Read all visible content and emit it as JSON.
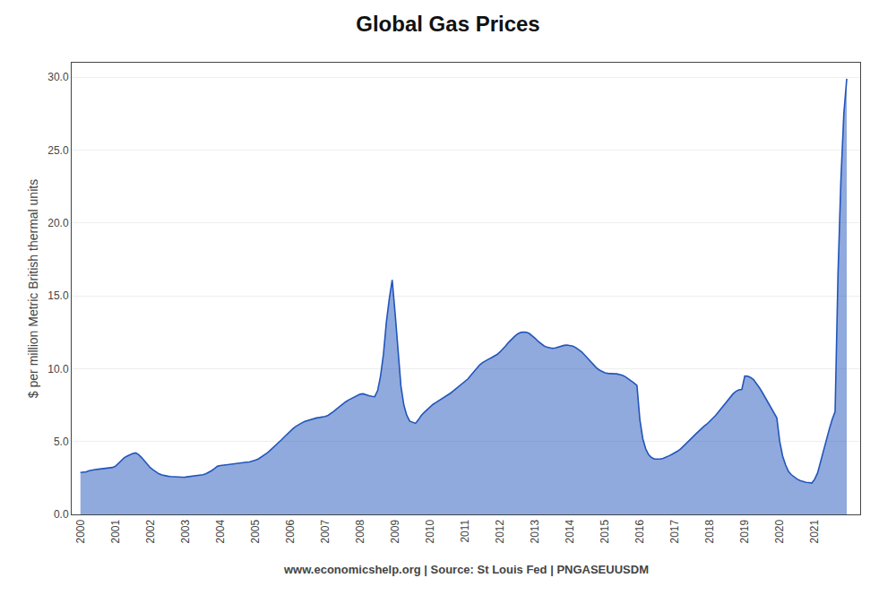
{
  "chart_data": {
    "type": "area",
    "title": "Global Gas Prices",
    "ylabel": "$ per million Metric British thermal units",
    "annotations": [
      "www.economicshelp.org | Source: St Louis Fed | PNGASEUUSDM"
    ],
    "color": "#2255BB",
    "grid": true,
    "xlim": [
      1999.75,
      2022.3
    ],
    "xticks": [
      2000,
      2001,
      2002,
      2003,
      2004,
      2005,
      2006,
      2007,
      2008,
      2009,
      2010,
      2011,
      2012,
      2013,
      2014,
      2015,
      2016,
      2017,
      2018,
      2019,
      2020,
      2021
    ],
    "ylim": [
      0.0,
      31.0
    ],
    "yticks": [
      {
        "value": 0.0,
        "label": "0.0"
      },
      {
        "value": 5.0,
        "label": "5.0"
      },
      {
        "value": 10.0,
        "label": "10.0"
      },
      {
        "value": 15.0,
        "label": "15.0"
      },
      {
        "value": 20.0,
        "label": "20.0"
      },
      {
        "value": 25.0,
        "label": "25.0"
      },
      {
        "value": 30.0,
        "label": "30.0"
      }
    ],
    "x": [
      2000,
      2000.083333333333,
      2000.166666666667,
      2000.25,
      2000.333333333333,
      2000.416666666667,
      2000.5,
      2000.583333333333,
      2000.666666666667,
      2000.75,
      2000.833333333333,
      2000.916666666667,
      2001,
      2001.083333333333,
      2001.166666666667,
      2001.25,
      2001.333333333333,
      2001.416666666667,
      2001.5,
      2001.583333333333,
      2001.666666666667,
      2001.75,
      2001.833333333333,
      2001.916666666667,
      2002,
      2002.083333333333,
      2002.166666666667,
      2002.25,
      2002.333333333333,
      2002.416666666667,
      2002.5,
      2002.583333333333,
      2002.666666666667,
      2002.75,
      2002.833333333333,
      2002.916666666667,
      2003,
      2003.083333333333,
      2003.166666666667,
      2003.25,
      2003.333333333333,
      2003.416666666667,
      2003.5,
      2003.583333333333,
      2003.666666666667,
      2003.75,
      2003.833333333333,
      2003.916666666667,
      2004,
      2004.083333333333,
      2004.166666666667,
      2004.25,
      2004.333333333333,
      2004.416666666667,
      2004.5,
      2004.583333333333,
      2004.666666666667,
      2004.75,
      2004.833333333333,
      2004.916666666667,
      2005,
      2005.083333333333,
      2005.166666666667,
      2005.25,
      2005.333333333333,
      2005.416666666667,
      2005.5,
      2005.583333333333,
      2005.666666666667,
      2005.75,
      2005.833333333333,
      2005.916666666667,
      2006,
      2006.083333333333,
      2006.166666666667,
      2006.25,
      2006.333333333333,
      2006.416666666667,
      2006.5,
      2006.583333333333,
      2006.666666666667,
      2006.75,
      2006.833333333333,
      2006.916666666667,
      2007,
      2007.083333333333,
      2007.166666666667,
      2007.25,
      2007.333333333333,
      2007.416666666667,
      2007.5,
      2007.583333333333,
      2007.666666666667,
      2007.75,
      2007.833333333333,
      2007.916666666667,
      2008,
      2008.083333333333,
      2008.166666666667,
      2008.25,
      2008.333333333333,
      2008.416666666667,
      2008.5,
      2008.583333333333,
      2008.666666666667,
      2008.75,
      2008.833333333333,
      2008.916666666667,
      2009,
      2009.083333333333,
      2009.166666666667,
      2009.25,
      2009.333333333333,
      2009.416666666667,
      2009.5,
      2009.583333333333,
      2009.666666666667,
      2009.75,
      2009.833333333333,
      2009.916666666667,
      2010,
      2010.083333333333,
      2010.166666666667,
      2010.25,
      2010.333333333333,
      2010.416666666667,
      2010.5,
      2010.583333333333,
      2010.666666666667,
      2010.75,
      2010.833333333333,
      2010.916666666667,
      2011,
      2011.083333333333,
      2011.166666666667,
      2011.25,
      2011.333333333333,
      2011.416666666667,
      2011.5,
      2011.583333333333,
      2011.666666666667,
      2011.75,
      2011.833333333333,
      2011.916666666667,
      2012,
      2012.083333333333,
      2012.166666666667,
      2012.25,
      2012.333333333333,
      2012.416666666667,
      2012.5,
      2012.583333333333,
      2012.666666666667,
      2012.75,
      2012.833333333333,
      2012.916666666667,
      2013,
      2013.083333333333,
      2013.166666666667,
      2013.25,
      2013.333333333333,
      2013.416666666667,
      2013.5,
      2013.583333333333,
      2013.666666666667,
      2013.75,
      2013.833333333333,
      2013.916666666667,
      2014,
      2014.083333333333,
      2014.166666666667,
      2014.25,
      2014.333333333333,
      2014.416666666667,
      2014.5,
      2014.583333333333,
      2014.666666666667,
      2014.75,
      2014.833333333333,
      2014.916666666667,
      2015,
      2015.083333333333,
      2015.166666666667,
      2015.25,
      2015.333333333333,
      2015.416666666667,
      2015.5,
      2015.583333333333,
      2015.666666666667,
      2015.75,
      2015.833333333333,
      2015.916666666667,
      2016,
      2016.083333333333,
      2016.166666666667,
      2016.25,
      2016.333333333333,
      2016.416666666667,
      2016.5,
      2016.583333333333,
      2016.666666666667,
      2016.75,
      2016.833333333333,
      2016.916666666667,
      2017,
      2017.083333333333,
      2017.166666666667,
      2017.25,
      2017.333333333333,
      2017.416666666667,
      2017.5,
      2017.583333333333,
      2017.666666666667,
      2017.75,
      2017.833333333333,
      2017.916666666667,
      2018,
      2018.083333333333,
      2018.166666666667,
      2018.25,
      2018.333333333333,
      2018.416666666667,
      2018.5,
      2018.583333333333,
      2018.666666666667,
      2018.75,
      2018.833333333333,
      2018.916666666667,
      2019,
      2019.083333333333,
      2019.166666666667,
      2019.25,
      2019.333333333333,
      2019.416666666667,
      2019.5,
      2019.583333333333,
      2019.666666666667,
      2019.75,
      2019.833333333333,
      2019.916666666667,
      2020,
      2020.083333333333,
      2020.166666666667,
      2020.25,
      2020.333333333333,
      2020.416666666667,
      2020.5,
      2020.583333333333,
      2020.666666666667,
      2020.75,
      2020.833333333333,
      2020.916666666667,
      2021,
      2021.083333333333,
      2021.166666666667,
      2021.25,
      2021.333333333333,
      2021.416666666667,
      2021.5,
      2021.583333333333,
      2021.666666666667,
      2021.75,
      2021.833333333333,
      2021.916666666667
    ],
    "values": [
      2.88,
      2.9,
      2.92,
      3.0,
      3.05,
      3.08,
      3.1,
      3.12,
      3.15,
      3.18,
      3.2,
      3.22,
      3.3,
      3.5,
      3.72,
      3.88,
      4.0,
      4.1,
      4.18,
      4.22,
      4.1,
      3.9,
      3.65,
      3.4,
      3.2,
      3.05,
      2.9,
      2.78,
      2.7,
      2.65,
      2.62,
      2.6,
      2.58,
      2.56,
      2.55,
      2.55,
      2.56,
      2.58,
      2.6,
      2.62,
      2.65,
      2.68,
      2.72,
      2.78,
      2.88,
      3.0,
      3.15,
      3.3,
      3.35,
      3.38,
      3.4,
      3.42,
      3.45,
      3.48,
      3.5,
      3.52,
      3.55,
      3.58,
      3.6,
      3.65,
      3.72,
      3.8,
      3.92,
      4.05,
      4.2,
      4.38,
      4.55,
      4.72,
      4.92,
      5.12,
      5.32,
      5.52,
      5.72,
      5.9,
      6.05,
      6.18,
      6.28,
      6.38,
      6.45,
      6.52,
      6.58,
      6.62,
      6.65,
      6.68,
      6.72,
      6.8,
      6.92,
      7.08,
      7.25,
      7.42,
      7.58,
      7.72,
      7.85,
      7.95,
      8.05,
      8.15,
      8.25,
      8.28,
      8.2,
      8.15,
      8.1,
      8.08,
      8.5,
      9.5,
      11.0,
      13.2,
      14.8,
      16.1,
      13.8,
      11.0,
      8.8,
      7.5,
      6.8,
      6.4,
      6.3,
      6.25,
      6.5,
      6.8,
      7.0,
      7.2,
      7.4,
      7.55,
      7.68,
      7.8,
      7.92,
      8.05,
      8.18,
      8.32,
      8.48,
      8.65,
      8.8,
      8.95,
      9.1,
      9.3,
      9.55,
      9.8,
      10.05,
      10.25,
      10.42,
      10.55,
      10.65,
      10.75,
      10.85,
      10.98,
      11.15,
      11.35,
      11.58,
      11.82,
      12.05,
      12.22,
      12.38,
      12.48,
      12.52,
      12.5,
      12.42,
      12.28,
      12.1,
      11.9,
      11.72,
      11.58,
      11.48,
      11.42,
      11.4,
      11.42,
      11.48,
      11.55,
      11.6,
      11.62,
      11.6,
      11.55,
      11.45,
      11.32,
      11.15,
      10.95,
      10.72,
      10.5,
      10.28,
      10.08,
      9.92,
      9.8,
      9.72,
      9.68,
      9.65,
      9.65,
      9.65,
      9.62,
      9.55,
      9.45,
      9.32,
      9.18,
      9.02,
      8.85,
      6.5,
      5.2,
      4.5,
      4.1,
      3.9,
      3.8,
      3.78,
      3.8,
      3.85,
      3.92,
      4.02,
      4.12,
      4.22,
      4.35,
      4.5,
      4.68,
      4.88,
      5.08,
      5.28,
      5.48,
      5.68,
      5.88,
      6.05,
      6.2,
      6.38,
      6.58,
      6.8,
      7.05,
      7.3,
      7.55,
      7.8,
      8.05,
      8.28,
      8.45,
      8.55,
      8.58,
      9.5,
      9.48,
      9.4,
      9.25,
      9.0,
      8.7,
      8.38,
      8.02,
      7.65,
      7.28,
      6.95,
      6.62,
      5.0,
      4.0,
      3.4,
      2.95,
      2.72,
      2.55,
      2.42,
      2.32,
      2.25,
      2.2,
      2.18,
      2.15,
      2.42,
      2.85,
      3.6,
      4.38,
      5.12,
      5.85,
      6.52,
      7.05,
      16.5,
      23.0,
      27.5,
      29.9
    ]
  }
}
